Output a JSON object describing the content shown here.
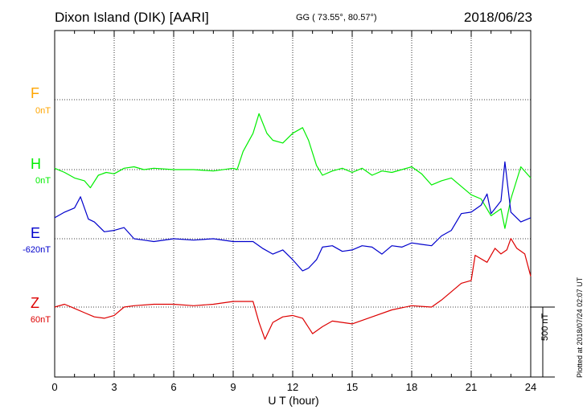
{
  "header": {
    "station": "Dixon Island (DIK)  [AARI]",
    "coords": "GG ( 73.55°,  80.57°)",
    "date": "2018/06/23"
  },
  "footer": {
    "plotted": "Plotted at 2018/07/24 02:07 UT"
  },
  "colors": {
    "F": "#ffa500",
    "H": "#00ee00",
    "E": "#0000cc",
    "Z": "#dd0000"
  },
  "chart_data": {
    "type": "line",
    "title": "Dixon Island (DIK)  [AARI]",
    "xlabel": "U T (hour)",
    "xlim": [
      0,
      24
    ],
    "xticks": [
      "0",
      "3",
      "6",
      "9",
      "12",
      "15",
      "18",
      "21",
      "24"
    ],
    "scale_label": "500 nT",
    "components": [
      {
        "name": "F",
        "baseline": "0nT"
      },
      {
        "name": "H",
        "baseline": "0nT"
      },
      {
        "name": "E",
        "baseline": "-620nT"
      },
      {
        "name": "Z",
        "baseline": "60nT"
      }
    ],
    "series": [
      {
        "name": "H",
        "points": [
          [
            0,
            10
          ],
          [
            0.5,
            -20
          ],
          [
            1,
            -60
          ],
          [
            1.5,
            -80
          ],
          [
            1.8,
            -130
          ],
          [
            2.2,
            -40
          ],
          [
            2.6,
            -20
          ],
          [
            3,
            -30
          ],
          [
            3.5,
            10
          ],
          [
            4,
            20
          ],
          [
            4.5,
            0
          ],
          [
            5,
            10
          ],
          [
            6,
            0
          ],
          [
            7,
            0
          ],
          [
            8,
            -10
          ],
          [
            9,
            10
          ],
          [
            9.2,
            0
          ],
          [
            9.5,
            130
          ],
          [
            10,
            260
          ],
          [
            10.3,
            400
          ],
          [
            10.7,
            260
          ],
          [
            11,
            210
          ],
          [
            11.5,
            190
          ],
          [
            12,
            260
          ],
          [
            12.5,
            300
          ],
          [
            12.8,
            210
          ],
          [
            13.2,
            30
          ],
          [
            13.5,
            -40
          ],
          [
            14,
            -10
          ],
          [
            14.5,
            10
          ],
          [
            15,
            -20
          ],
          [
            15.5,
            10
          ],
          [
            16,
            -40
          ],
          [
            16.5,
            -10
          ],
          [
            17,
            -20
          ],
          [
            17.5,
            0
          ],
          [
            18,
            20
          ],
          [
            18.5,
            -30
          ],
          [
            19,
            -110
          ],
          [
            19.5,
            -80
          ],
          [
            20,
            -60
          ],
          [
            20.5,
            -120
          ],
          [
            21,
            -180
          ],
          [
            21.5,
            -210
          ],
          [
            22,
            -330
          ],
          [
            22.5,
            -280
          ],
          [
            22.7,
            -420
          ],
          [
            23,
            -210
          ],
          [
            23.5,
            20
          ],
          [
            24,
            -60
          ]
        ]
      },
      {
        "name": "E",
        "points": [
          [
            0,
            150
          ],
          [
            0.5,
            190
          ],
          [
            1,
            220
          ],
          [
            1.3,
            300
          ],
          [
            1.7,
            140
          ],
          [
            2,
            120
          ],
          [
            2.5,
            50
          ],
          [
            3,
            60
          ],
          [
            3.5,
            80
          ],
          [
            4,
            0
          ],
          [
            4.5,
            -10
          ],
          [
            5,
            -20
          ],
          [
            6,
            0
          ],
          [
            7,
            -10
          ],
          [
            8,
            0
          ],
          [
            9,
            -20
          ],
          [
            10,
            -20
          ],
          [
            10.5,
            -70
          ],
          [
            11,
            -110
          ],
          [
            11.5,
            -80
          ],
          [
            12,
            -150
          ],
          [
            12.5,
            -230
          ],
          [
            12.8,
            -210
          ],
          [
            13.2,
            -150
          ],
          [
            13.5,
            -60
          ],
          [
            14,
            -50
          ],
          [
            14.5,
            -90
          ],
          [
            15,
            -80
          ],
          [
            15.5,
            -50
          ],
          [
            16,
            -60
          ],
          [
            16.5,
            -110
          ],
          [
            17,
            -50
          ],
          [
            17.5,
            -60
          ],
          [
            18,
            -30
          ],
          [
            18.5,
            -40
          ],
          [
            19,
            -50
          ],
          [
            19.5,
            20
          ],
          [
            20,
            60
          ],
          [
            20.5,
            180
          ],
          [
            21,
            190
          ],
          [
            21.5,
            240
          ],
          [
            21.8,
            320
          ],
          [
            22,
            180
          ],
          [
            22.5,
            270
          ],
          [
            22.7,
            550
          ],
          [
            23,
            190
          ],
          [
            23.5,
            120
          ],
          [
            24,
            150
          ]
        ]
      },
      {
        "name": "Z",
        "points": [
          [
            0,
            0
          ],
          [
            0.5,
            20
          ],
          [
            1,
            -10
          ],
          [
            1.5,
            -40
          ],
          [
            2,
            -70
          ],
          [
            2.5,
            -80
          ],
          [
            3,
            -60
          ],
          [
            3.5,
            0
          ],
          [
            4,
            10
          ],
          [
            5,
            20
          ],
          [
            6,
            20
          ],
          [
            7,
            10
          ],
          [
            8,
            20
          ],
          [
            9,
            40
          ],
          [
            10,
            40
          ],
          [
            10.3,
            -110
          ],
          [
            10.6,
            -230
          ],
          [
            11,
            -110
          ],
          [
            11.5,
            -70
          ],
          [
            12,
            -60
          ],
          [
            12.5,
            -80
          ],
          [
            13,
            -190
          ],
          [
            13.5,
            -140
          ],
          [
            14,
            -100
          ],
          [
            15,
            -120
          ],
          [
            16,
            -70
          ],
          [
            17,
            -20
          ],
          [
            18,
            10
          ],
          [
            19,
            0
          ],
          [
            19.5,
            50
          ],
          [
            20,
            110
          ],
          [
            20.5,
            170
          ],
          [
            21,
            190
          ],
          [
            21.2,
            370
          ],
          [
            21.8,
            320
          ],
          [
            22.2,
            420
          ],
          [
            22.5,
            380
          ],
          [
            22.8,
            410
          ],
          [
            23,
            490
          ],
          [
            23.3,
            420
          ],
          [
            23.7,
            380
          ],
          [
            24,
            220
          ]
        ]
      }
    ]
  }
}
